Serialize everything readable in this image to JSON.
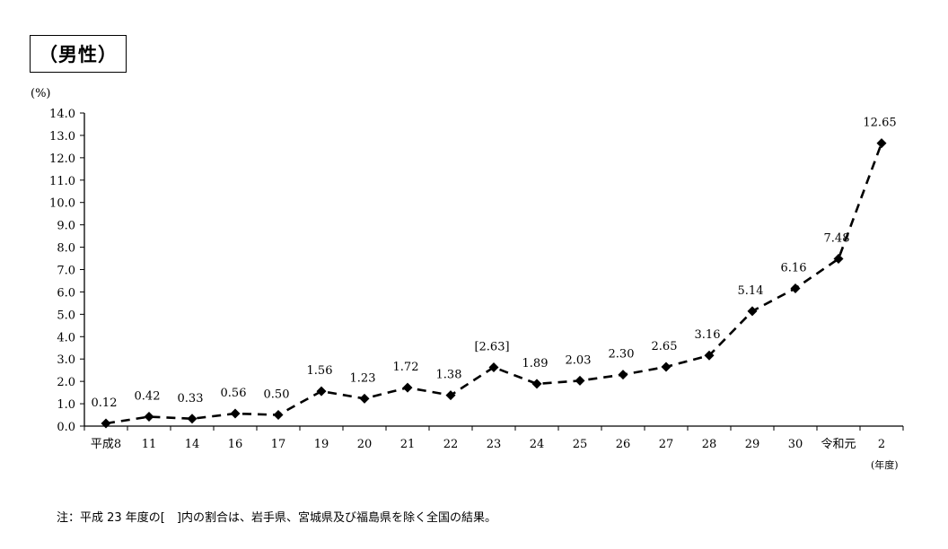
{
  "title": "（男性）",
  "note": "注：平成 23 年度の[　]内の割合は、岩手県、宮城県及び福島県を除く全国の結果。",
  "chart_data": {
    "type": "line",
    "ylabel": "(%)",
    "xlabel": "(年度)",
    "ylim": [
      0,
      14
    ],
    "yticks": [
      "0.0",
      "1.0",
      "2.0",
      "3.0",
      "4.0",
      "5.0",
      "6.0",
      "7.0",
      "8.0",
      "9.0",
      "10.0",
      "11.0",
      "12.0",
      "13.0",
      "14.0"
    ],
    "categories": [
      "平成8",
      "11",
      "14",
      "16",
      "17",
      "19",
      "20",
      "21",
      "22",
      "23",
      "24",
      "25",
      "26",
      "27",
      "28",
      "29",
      "30",
      "令和元",
      "2"
    ],
    "values": [
      0.12,
      0.42,
      0.33,
      0.56,
      0.5,
      1.56,
      1.23,
      1.72,
      1.38,
      2.63,
      1.89,
      2.03,
      2.3,
      2.65,
      3.16,
      5.14,
      6.16,
      7.48,
      12.65
    ],
    "data_labels": [
      "0.12",
      "0.42",
      "0.33",
      "0.56",
      "0.50",
      "1.56",
      "1.23",
      "1.72",
      "1.38",
      "[2.63]",
      "1.89",
      "2.03",
      "2.30",
      "2.65",
      "3.16",
      "5.14",
      "6.16",
      "7.48",
      "12.65"
    ],
    "line_style": "dashed",
    "marker": "diamond",
    "grid": false
  }
}
